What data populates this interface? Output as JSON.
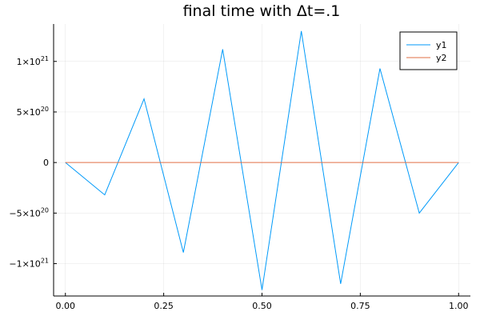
{
  "chart_data": {
    "type": "line",
    "title": "final time with Δt=.1",
    "xlabel": "",
    "ylabel": "",
    "xlim": [
      -0.03,
      1.03
    ],
    "ylim": [
      -1.32e+21,
      1.37e+21
    ],
    "grid": true,
    "legend_position": "top-right",
    "x_ticks": [
      {
        "value": 0.0,
        "label": "0.00"
      },
      {
        "value": 0.25,
        "label": "0.25"
      },
      {
        "value": 0.5,
        "label": "0.50"
      },
      {
        "value": 0.75,
        "label": "0.75"
      },
      {
        "value": 1.0,
        "label": "1.00"
      }
    ],
    "y_ticks": [
      {
        "value": 1e+21,
        "mantissa": "1×10",
        "exp": "21"
      },
      {
        "value": 5e+20,
        "mantissa": "5×10",
        "exp": "20"
      },
      {
        "value": 0,
        "mantissa": "0",
        "exp": ""
      },
      {
        "value": -5e+20,
        "mantissa": "−5×10",
        "exp": "20"
      },
      {
        "value": -1e+21,
        "mantissa": "−1×10",
        "exp": "21"
      }
    ],
    "series": [
      {
        "name": "y1",
        "color": "#009af9",
        "x": [
          0.0,
          0.1,
          0.2,
          0.3,
          0.4,
          0.5,
          0.6,
          0.7,
          0.8,
          0.9,
          1.0
        ],
        "y": [
          0,
          -3.2e+20,
          6.3e+20,
          -8.9e+20,
          1.12e+21,
          -1.26e+21,
          1.3e+21,
          -1.2e+21,
          9.3e+20,
          -5e+20,
          0
        ]
      },
      {
        "name": "y2",
        "color": "#e26f46",
        "x": [
          0.0,
          0.1,
          0.2,
          0.3,
          0.4,
          0.5,
          0.6,
          0.7,
          0.8,
          0.9,
          1.0
        ],
        "y": [
          0,
          0,
          0,
          0,
          0,
          0,
          0,
          0,
          0,
          0,
          0
        ]
      }
    ]
  }
}
